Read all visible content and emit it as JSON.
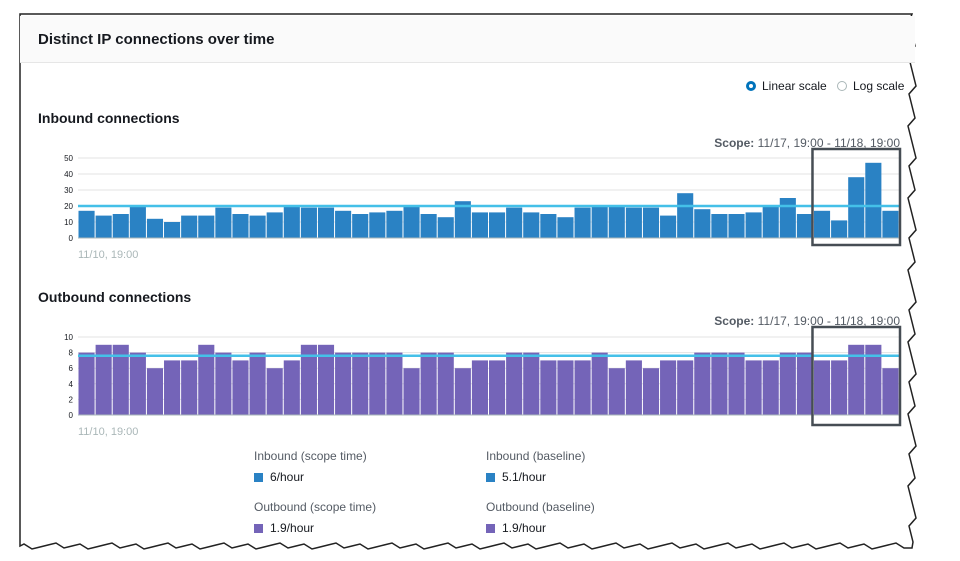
{
  "panel": {
    "title": "Distinct IP connections over time"
  },
  "scale": {
    "linear_label": "Linear scale",
    "log_label": "Log scale",
    "selected": "linear"
  },
  "colors": {
    "inbound": "#2a82c4",
    "outbound": "#7464b8",
    "baseline": "#44c0e8",
    "highlight": "#464d54"
  },
  "inbound": {
    "title": "Inbound connections",
    "scope_label": "Scope:",
    "scope_value": "11/17, 19:00 - 11/18, 19:00"
  },
  "outbound": {
    "title": "Outbound connections",
    "scope_label": "Scope:",
    "scope_value": "11/17, 19:00 - 11/18, 19:00"
  },
  "legend": {
    "inbound_scope_label": "Inbound (scope time)",
    "inbound_scope_value": "6/hour",
    "inbound_baseline_label": "Inbound (baseline)",
    "inbound_baseline_value": "5.1/hour",
    "outbound_scope_label": "Outbound (scope time)",
    "outbound_scope_value": "1.9/hour",
    "outbound_baseline_label": "Outbound (baseline)",
    "outbound_baseline_value": "1.9/hour"
  },
  "chart_data": [
    {
      "type": "bar",
      "title": "Inbound connections",
      "x_start_label": "11/10, 19:00",
      "yticks": [
        0,
        10,
        20,
        30,
        40,
        50
      ],
      "ylim": [
        0,
        50
      ],
      "baseline": 20,
      "highlight_last_n": 5,
      "values": [
        17,
        14,
        15,
        20,
        12,
        10,
        14,
        14,
        19,
        15,
        14,
        16,
        20,
        19,
        19,
        17,
        15,
        16,
        17,
        20,
        15,
        13,
        23,
        16,
        16,
        19,
        16,
        15,
        13,
        19,
        20,
        20,
        19,
        19,
        14,
        28,
        18,
        15,
        15,
        16,
        20,
        25,
        15,
        17,
        11,
        38,
        47,
        17
      ]
    },
    {
      "type": "bar",
      "title": "Outbound connections",
      "x_start_label": "11/10, 19:00",
      "yticks": [
        0,
        2,
        4,
        6,
        8,
        10
      ],
      "ylim": [
        0,
        10
      ],
      "baseline": 7.6,
      "highlight_last_n": 5,
      "values": [
        8,
        9,
        9,
        8,
        6,
        7,
        7,
        9,
        8,
        7,
        8,
        6,
        7,
        9,
        9,
        8,
        8,
        8,
        8,
        6,
        8,
        8,
        6,
        7,
        7,
        8,
        8,
        7,
        7,
        7,
        8,
        6,
        7,
        6,
        7,
        7,
        8,
        8,
        8,
        7,
        7,
        8,
        8,
        7,
        7,
        9,
        9,
        6
      ]
    }
  ]
}
